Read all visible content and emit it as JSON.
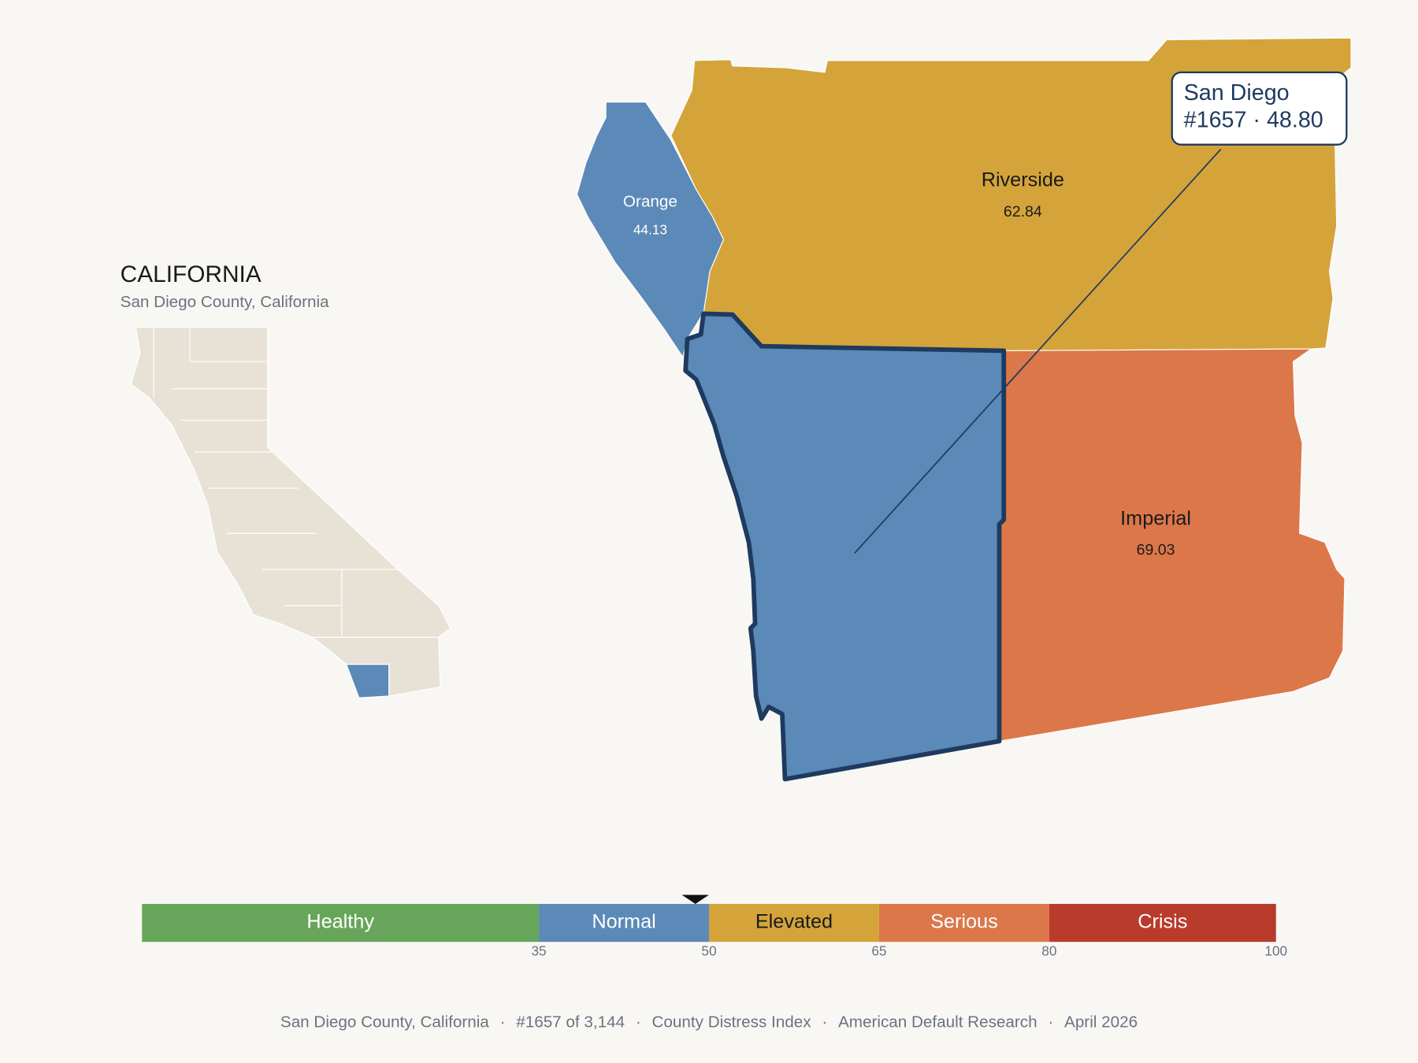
{
  "title": "CALIFORNIA",
  "subtitle": "San Diego County, California",
  "counties": [
    {
      "name": "Riverside",
      "value": 62.84
    },
    {
      "name": "Orange",
      "value": 44.13
    },
    {
      "name": "Imperial",
      "value": 69.03
    }
  ],
  "callout": {
    "name": "San Diego",
    "text": "#1657 · 48.80",
    "value": 48.8
  },
  "scale": {
    "xlim": [
      0,
      100
    ],
    "ticks": [
      35,
      50,
      65,
      80,
      100
    ],
    "bands": [
      {
        "label": "Healthy",
        "color": "#67a65a"
      },
      {
        "label": "Normal",
        "color": "#5b89b8"
      },
      {
        "label": "Elevated",
        "color": "#d4a43a"
      },
      {
        "label": "Serious",
        "color": "#dc774a"
      },
      {
        "label": "Crisis",
        "color": "#b93b2c"
      }
    ]
  },
  "footer": {
    "separator": "·",
    "items": [
      "San Diego County, California",
      "#1657 of 3,144",
      "County Distress Index",
      "American Default Research",
      "April 2026"
    ]
  }
}
